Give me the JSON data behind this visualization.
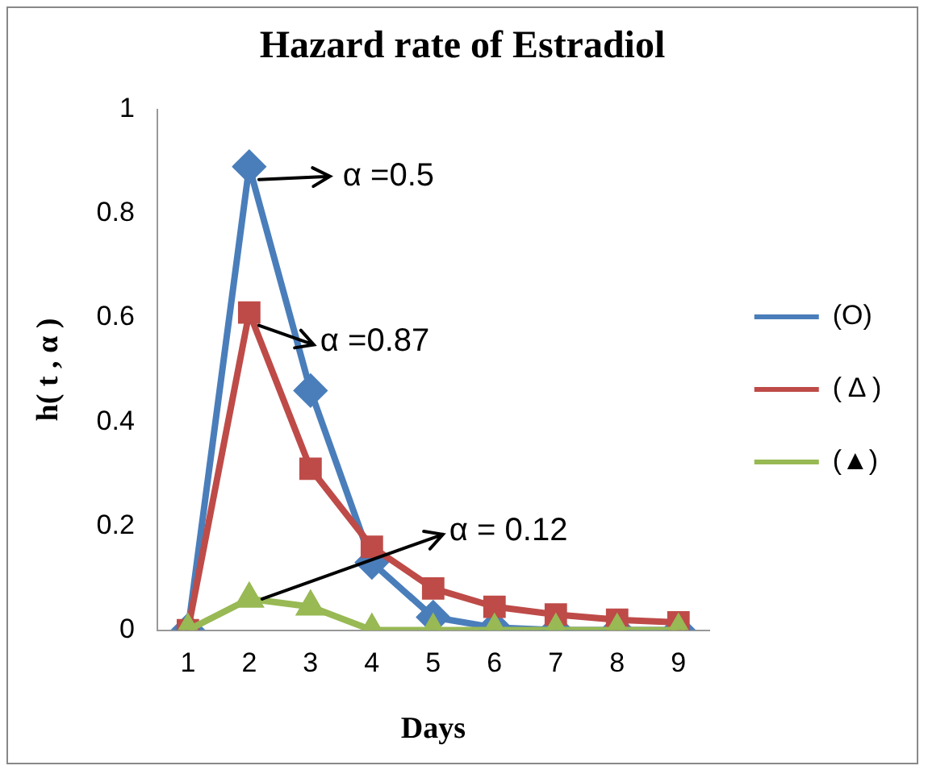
{
  "chart_data": {
    "type": "line",
    "title": "Hazard rate of Estradiol",
    "xlabel": "Days",
    "ylabel": "h( t , α )",
    "categories": [
      "1",
      "2",
      "3",
      "4",
      "5",
      "6",
      "7",
      "8",
      "9"
    ],
    "series": [
      {
        "name": "(O)",
        "color": "#4a7ebb",
        "marker": "diamond",
        "values": [
          0,
          0.89,
          0.46,
          0.13,
          0.025,
          0.005,
          0,
          0,
          0
        ]
      },
      {
        "name": "( Δ )",
        "color": "#be4b48",
        "marker": "square",
        "values": [
          0,
          0.61,
          0.31,
          0.16,
          0.08,
          0.045,
          0.03,
          0.02,
          0.015
        ]
      },
      {
        "name": "(▲)",
        "color": "#98b954",
        "marker": "triangle",
        "values": [
          0,
          0.06,
          0.045,
          0,
          0,
          0,
          0,
          0,
          0
        ]
      }
    ],
    "ylim": [
      0,
      1
    ],
    "yticks": [
      0,
      0.2,
      0.4,
      0.6,
      0.8,
      1
    ],
    "grid": false,
    "legend": "right",
    "line_style": "solid",
    "annotations": [
      {
        "text": "α =0.5",
        "x": "2",
        "y": 0.89
      },
      {
        "text": "α =0.87",
        "x": "2",
        "y": 0.61
      },
      {
        "text": "α = 0.12",
        "x": "2",
        "y": 0.06
      }
    ]
  }
}
